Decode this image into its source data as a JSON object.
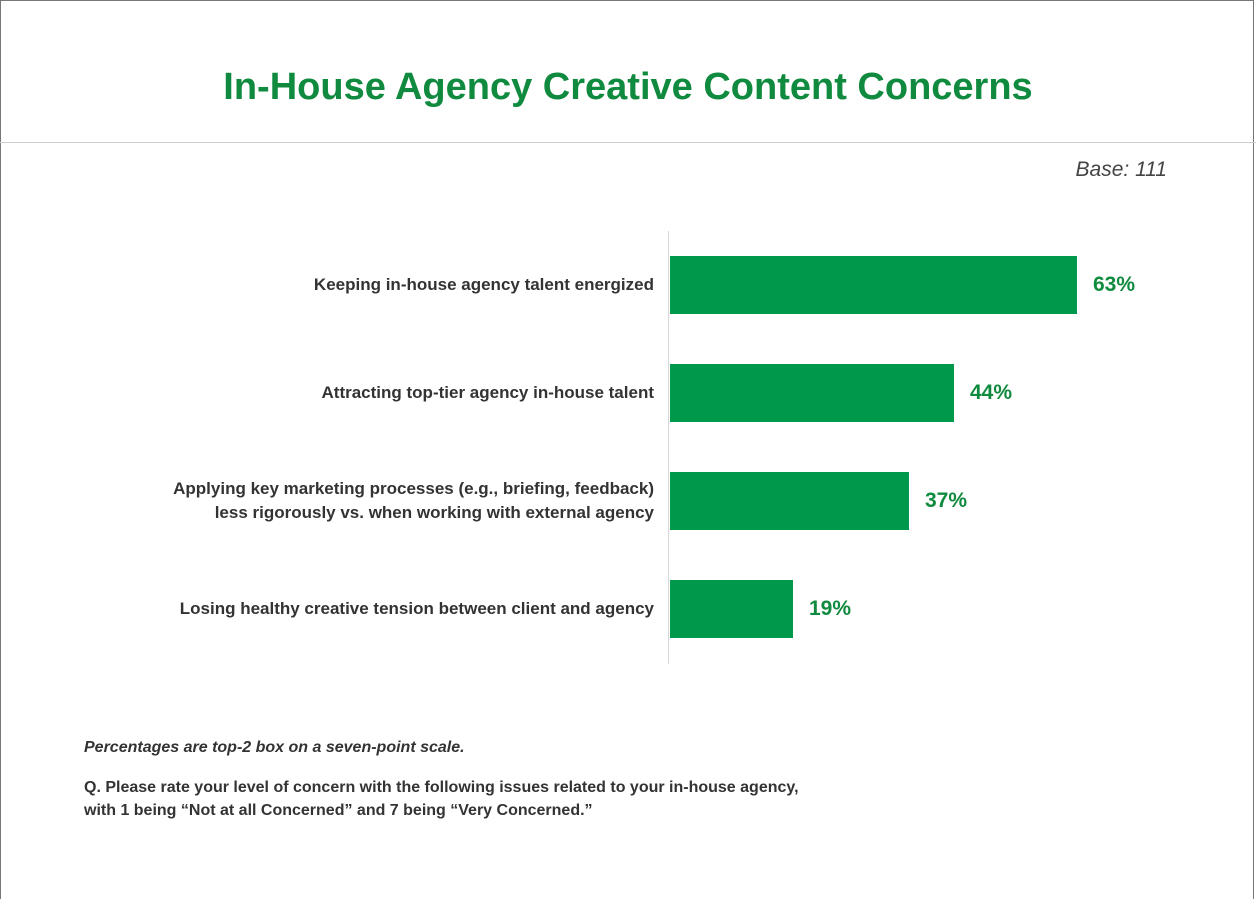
{
  "title": "In-House Agency Creative Content Concerns",
  "base": "Base: 111",
  "note": "Percentages are top-2 box on a seven-point scale.",
  "question": [
    "Q. Please rate your level of concern with the following issues related to your in-house agency,",
    "with 1 being “Not at all Concerned” and 7 being “Very Concerned.”"
  ],
  "colors": {
    "bar": "#00994c",
    "title": "#0f8a3e",
    "value_label": "#0f8a3e"
  },
  "chart_data": {
    "type": "bar",
    "orientation": "horizontal",
    "categories": [
      [
        "Keeping in-house agency talent energized"
      ],
      [
        "Attracting top-tier agency in-house talent"
      ],
      [
        "Applying key marketing processes (e.g., briefing, feedback)",
        "less rigorously vs. when working with external agency"
      ],
      [
        "Losing healthy creative tension between client and agency"
      ]
    ],
    "values": [
      63,
      44,
      37,
      19
    ],
    "value_labels": [
      "63%",
      "44%",
      "37%",
      "19%"
    ],
    "xlim": [
      0,
      100
    ],
    "grid": false,
    "legend": "none"
  }
}
